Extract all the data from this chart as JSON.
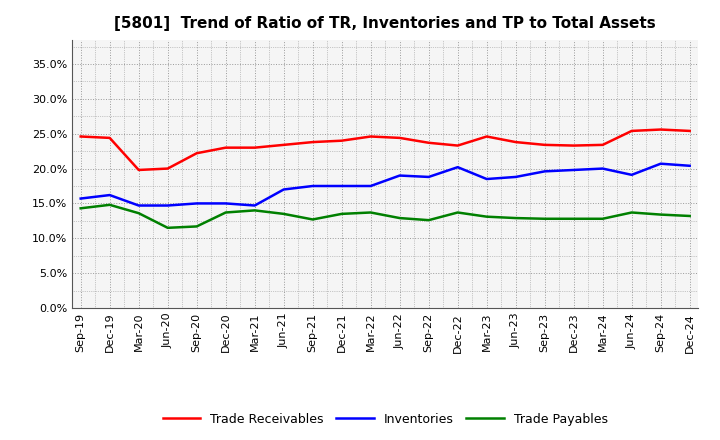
{
  "title": "[5801]  Trend of Ratio of TR, Inventories and TP to Total Assets",
  "x_labels": [
    "Sep-19",
    "Dec-19",
    "Mar-20",
    "Jun-20",
    "Sep-20",
    "Dec-20",
    "Mar-21",
    "Jun-21",
    "Sep-21",
    "Dec-21",
    "Mar-22",
    "Jun-22",
    "Sep-22",
    "Dec-22",
    "Mar-23",
    "Jun-23",
    "Sep-23",
    "Dec-23",
    "Mar-24",
    "Jun-24",
    "Sep-24",
    "Dec-24"
  ],
  "trade_receivables": [
    0.246,
    0.244,
    0.198,
    0.2,
    0.222,
    0.23,
    0.23,
    0.234,
    0.238,
    0.24,
    0.246,
    0.244,
    0.237,
    0.233,
    0.246,
    0.238,
    0.234,
    0.233,
    0.234,
    0.254,
    0.256,
    0.254
  ],
  "inventories": [
    0.157,
    0.162,
    0.147,
    0.147,
    0.15,
    0.15,
    0.147,
    0.17,
    0.175,
    0.175,
    0.175,
    0.19,
    0.188,
    0.202,
    0.185,
    0.188,
    0.196,
    0.198,
    0.2,
    0.191,
    0.207,
    0.204
  ],
  "trade_payables": [
    0.143,
    0.148,
    0.136,
    0.115,
    0.117,
    0.137,
    0.14,
    0.135,
    0.127,
    0.135,
    0.137,
    0.129,
    0.126,
    0.137,
    0.131,
    0.129,
    0.128,
    0.128,
    0.128,
    0.137,
    0.134,
    0.132
  ],
  "line_color_tr": "#ff0000",
  "line_color_inv": "#0000ff",
  "line_color_tp": "#008000",
  "ylim": [
    0.0,
    0.385
  ],
  "yticks": [
    0.0,
    0.05,
    0.1,
    0.15,
    0.2,
    0.25,
    0.3,
    0.35
  ],
  "legend_labels": [
    "Trade Receivables",
    "Inventories",
    "Trade Payables"
  ],
  "background_color": "#ffffff",
  "plot_bg_color": "#f5f5f5",
  "grid_color": "#999999",
  "title_fontsize": 11,
  "tick_fontsize": 8,
  "legend_fontsize": 9
}
